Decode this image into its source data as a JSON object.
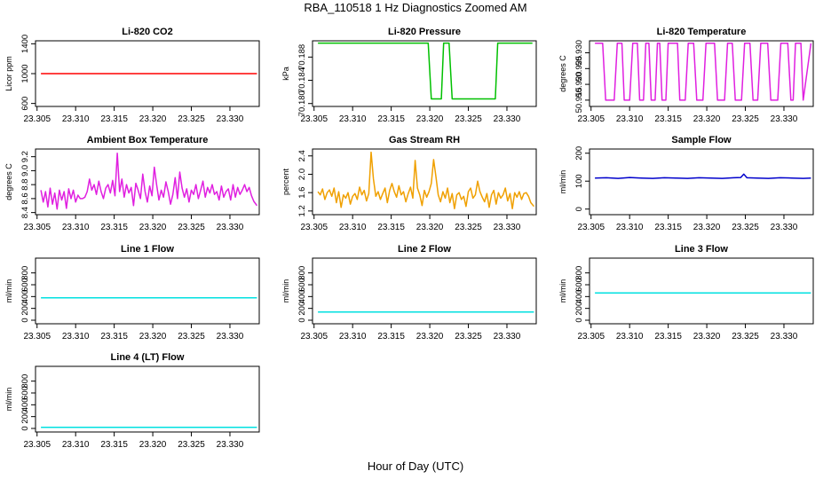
{
  "figure": {
    "title": "RBA_110518  1 Hz Diagnostics Zoomed AM",
    "xlabel": "Hour of Day (UTC)"
  },
  "chart_data": [
    {
      "type": "line",
      "title": "Li-820 CO2",
      "ylabel": "Licor ppm",
      "color": "#ff0000",
      "x_ticks": [
        "23.305",
        "23.310",
        "23.315",
        "23.320",
        "23.325",
        "23.330"
      ],
      "y_ticks": [
        600,
        1000,
        1400
      ],
      "ylim": [
        560,
        1440
      ],
      "xlim": [
        23.3048,
        23.3338
      ],
      "series": [
        {
          "name": "CO2",
          "x": [
            23.3055,
            23.3335
          ],
          "values": [
            1000,
            1000
          ]
        }
      ]
    },
    {
      "type": "line",
      "title": "Li-820 Pressure",
      "ylabel": "kPa",
      "color": "#00c000",
      "x_ticks": [
        "23.305",
        "23.310",
        "23.315",
        "23.320",
        "23.325",
        "23.330"
      ],
      "y_ticks": [
        70.18,
        70.184,
        70.188
      ],
      "y_tick_labels": [
        "70.180",
        "70.184",
        "70.188"
      ],
      "ylim": [
        70.1795,
        70.1908
      ],
      "xlim": [
        23.3048,
        23.3338
      ],
      "series": [
        {
          "name": "Pressure",
          "x": [
            23.3055,
            23.3198,
            23.3202,
            23.3215,
            23.3218,
            23.3225,
            23.3229,
            23.3285,
            23.3288,
            23.3333
          ],
          "values": [
            70.1904,
            70.1904,
            70.1808,
            70.1808,
            70.1904,
            70.1904,
            70.1808,
            70.1808,
            70.1904,
            70.1904
          ]
        }
      ]
    },
    {
      "type": "line",
      "title": "Li-820 Temperature",
      "ylabel": "degrees C",
      "color": "#e020e0",
      "x_ticks": [
        "23.305",
        "23.310",
        "23.315",
        "23.320",
        "23.325",
        "23.330"
      ],
      "y_ticks": [
        50.915,
        50.92,
        50.925,
        50.93
      ],
      "y_tick_labels": [
        "50.915",
        "50.920",
        "50.925",
        "50.930"
      ],
      "ylim": [
        50.913,
        50.9338
      ],
      "xlim": [
        23.3048,
        23.3338
      ],
      "series": [
        {
          "name": "Temperature",
          "x": [
            23.3055,
            23.3065,
            23.3069,
            23.308,
            23.3084,
            23.309,
            23.3093,
            23.31,
            23.3104,
            23.311,
            23.3113,
            23.3118,
            23.3121,
            23.3125,
            23.3128,
            23.3133,
            23.3136,
            23.3139,
            23.3142,
            23.3147,
            23.315,
            23.3162,
            23.3165,
            23.3172,
            23.3176,
            23.3183,
            23.3187,
            23.3195,
            23.3199,
            23.321,
            23.3214,
            23.3223,
            23.3227,
            23.3233,
            23.3237,
            23.3245,
            23.3249,
            23.3256,
            23.326,
            23.3266,
            23.327,
            23.3279,
            23.3283,
            23.3292,
            23.3296,
            23.3305,
            23.3309,
            23.3312,
            23.3315,
            23.3322,
            23.3325,
            23.3335
          ],
          "values": [
            50.933,
            50.933,
            50.915,
            50.915,
            50.933,
            50.933,
            50.915,
            50.915,
            50.933,
            50.933,
            50.915,
            50.915,
            50.933,
            50.933,
            50.915,
            50.915,
            50.933,
            50.933,
            50.915,
            50.915,
            50.933,
            50.933,
            50.915,
            50.915,
            50.933,
            50.933,
            50.915,
            50.915,
            50.933,
            50.933,
            50.915,
            50.915,
            50.933,
            50.933,
            50.915,
            50.915,
            50.933,
            50.933,
            50.915,
            50.915,
            50.933,
            50.933,
            50.915,
            50.915,
            50.933,
            50.933,
            50.915,
            50.915,
            50.933,
            50.933,
            50.915,
            50.933
          ]
        }
      ]
    },
    {
      "type": "line",
      "title": "Ambient Box Temperature",
      "ylabel": "degrees C",
      "color": "#e020e0",
      "x_ticks": [
        "23.305",
        "23.310",
        "23.315",
        "23.320",
        "23.325",
        "23.330"
      ],
      "y_ticks": [
        8.4,
        8.6,
        8.8,
        9.0,
        9.2
      ],
      "y_tick_labels": [
        "8.4",
        "8.6",
        "8.8",
        "9.0",
        "9.2"
      ],
      "ylim": [
        8.37,
        9.31
      ],
      "xlim": [
        23.3048,
        23.3338
      ],
      "series": [
        {
          "name": "Box Temp",
          "x": [
            23.3055,
            23.3058,
            23.3061,
            23.3064,
            23.3067,
            23.307,
            23.3073,
            23.3076,
            23.3079,
            23.3082,
            23.3085,
            23.3088,
            23.3091,
            23.3094,
            23.3097,
            23.31,
            23.3103,
            23.3106,
            23.3109,
            23.3112,
            23.3115,
            23.3118,
            23.3121,
            23.3124,
            23.3127,
            23.313,
            23.3133,
            23.3136,
            23.3139,
            23.3142,
            23.3145,
            23.3148,
            23.3151,
            23.3154,
            23.3157,
            23.316,
            23.3163,
            23.3166,
            23.3169,
            23.3172,
            23.3175,
            23.3178,
            23.3181,
            23.3184,
            23.3187,
            23.319,
            23.3193,
            23.3196,
            23.3199,
            23.3202,
            23.3205,
            23.3208,
            23.3211,
            23.3214,
            23.3217,
            23.322,
            23.3223,
            23.3226,
            23.3229,
            23.3232,
            23.3235,
            23.3238,
            23.3241,
            23.3244,
            23.3247,
            23.325,
            23.3253,
            23.3256,
            23.3259,
            23.3262,
            23.3265,
            23.3268,
            23.3271,
            23.3274,
            23.3277,
            23.328,
            23.3283,
            23.3286,
            23.3289,
            23.3292,
            23.3295,
            23.3298,
            23.3301,
            23.3304,
            23.3307,
            23.331,
            23.3313,
            23.3316,
            23.3319,
            23.3322,
            23.3325,
            23.3328,
            23.3331,
            23.3335
          ],
          "values": [
            8.72,
            8.55,
            8.7,
            8.48,
            8.75,
            8.52,
            8.68,
            8.45,
            8.72,
            8.58,
            8.7,
            8.46,
            8.74,
            8.6,
            8.72,
            8.55,
            8.65,
            8.6,
            8.6,
            8.62,
            8.7,
            8.88,
            8.72,
            8.8,
            8.66,
            8.85,
            8.7,
            8.6,
            8.75,
            8.8,
            8.68,
            8.86,
            8.64,
            9.25,
            8.7,
            8.88,
            8.62,
            8.8,
            8.68,
            8.76,
            8.5,
            8.82,
            8.72,
            8.6,
            8.95,
            8.7,
            8.55,
            8.78,
            8.64,
            9.05,
            8.8,
            8.58,
            8.72,
            8.62,
            8.84,
            8.7,
            8.52,
            8.66,
            8.9,
            8.6,
            8.98,
            8.75,
            8.62,
            8.74,
            8.55,
            8.72,
            8.66,
            8.8,
            8.6,
            8.72,
            8.85,
            8.62,
            8.76,
            8.68,
            8.8,
            8.66,
            8.7,
            8.58,
            8.78,
            8.62,
            8.7,
            8.74,
            8.58,
            8.8,
            8.62,
            8.76,
            8.66,
            8.72,
            8.8,
            8.7,
            8.76,
            8.64,
            8.56,
            8.5
          ]
        }
      ]
    },
    {
      "type": "line",
      "title": "Gas Stream RH",
      "ylabel": "percent",
      "color": "#f0a000",
      "x_ticks": [
        "23.305",
        "23.310",
        "23.315",
        "23.320",
        "23.325",
        "23.330"
      ],
      "y_ticks": [
        1.2,
        1.6,
        2.0,
        2.4
      ],
      "y_tick_labels": [
        "1.2",
        "1.6",
        "2.0",
        "2.4"
      ],
      "ylim": [
        1.12,
        2.55
      ],
      "xlim": [
        23.3048,
        23.3338
      ],
      "series": [
        {
          "name": "RH",
          "x": [
            23.3055,
            23.3058,
            23.3061,
            23.3064,
            23.3067,
            23.307,
            23.3073,
            23.3076,
            23.3079,
            23.3082,
            23.3085,
            23.3088,
            23.3091,
            23.3094,
            23.3097,
            23.31,
            23.3103,
            23.3106,
            23.3109,
            23.3112,
            23.3115,
            23.3118,
            23.3121,
            23.3124,
            23.3127,
            23.313,
            23.3133,
            23.3136,
            23.3139,
            23.3142,
            23.3145,
            23.3148,
            23.3151,
            23.3154,
            23.3157,
            23.316,
            23.3163,
            23.3166,
            23.3169,
            23.3172,
            23.3175,
            23.3178,
            23.3181,
            23.3184,
            23.3187,
            23.319,
            23.3193,
            23.3196,
            23.3199,
            23.3202,
            23.3205,
            23.3208,
            23.3211,
            23.3214,
            23.3217,
            23.322,
            23.3223,
            23.3226,
            23.3229,
            23.3232,
            23.3235,
            23.3238,
            23.3241,
            23.3244,
            23.3247,
            23.325,
            23.3253,
            23.3256,
            23.3259,
            23.3262,
            23.3265,
            23.3268,
            23.3271,
            23.3274,
            23.3277,
            23.328,
            23.3283,
            23.3286,
            23.3289,
            23.3292,
            23.3295,
            23.3298,
            23.3301,
            23.3304,
            23.3307,
            23.331,
            23.3313,
            23.3316,
            23.3319,
            23.3322,
            23.3325,
            23.3328,
            23.3331,
            23.3335
          ],
          "values": [
            1.62,
            1.55,
            1.68,
            1.45,
            1.6,
            1.66,
            1.52,
            1.7,
            1.38,
            1.62,
            1.28,
            1.55,
            1.48,
            1.6,
            1.35,
            1.52,
            1.58,
            1.45,
            1.72,
            1.55,
            1.65,
            1.42,
            1.58,
            2.48,
            1.9,
            1.52,
            1.62,
            1.45,
            1.58,
            1.7,
            1.38,
            1.65,
            1.8,
            1.62,
            1.5,
            1.75,
            1.55,
            1.62,
            1.4,
            1.58,
            1.72,
            1.48,
            2.3,
            1.7,
            1.55,
            1.32,
            1.65,
            1.5,
            1.62,
            1.8,
            2.32,
            1.95,
            1.55,
            1.4,
            1.62,
            1.48,
            1.7,
            1.38,
            1.58,
            1.25,
            1.55,
            1.6,
            1.45,
            1.52,
            1.3,
            1.62,
            1.7,
            1.48,
            1.55,
            1.85,
            1.62,
            1.5,
            1.4,
            1.58,
            1.28,
            1.55,
            1.65,
            1.35,
            1.6,
            1.48,
            1.55,
            1.7,
            1.42,
            1.58,
            1.25,
            1.6,
            1.5,
            1.62,
            1.45,
            1.58,
            1.6,
            1.52,
            1.38,
            1.3
          ]
        }
      ]
    },
    {
      "type": "line",
      "title": "Sample Flow",
      "ylabel": "ml/min",
      "color": "#0000cc",
      "x_ticks": [
        "23.305",
        "23.310",
        "23.315",
        "23.320",
        "23.325",
        "23.330"
      ],
      "y_ticks": [
        0,
        100,
        200
      ],
      "ylim": [
        -20,
        215
      ],
      "xlim": [
        23.3048,
        23.3338
      ],
      "series": [
        {
          "name": "Sample Flow",
          "x": [
            23.3055,
            23.307,
            23.3085,
            23.31,
            23.3115,
            23.313,
            23.3145,
            23.316,
            23.3175,
            23.319,
            23.3205,
            23.322,
            23.3235,
            23.3244,
            23.3248,
            23.3252,
            23.3265,
            23.328,
            23.3295,
            23.331,
            23.3325,
            23.3335
          ],
          "values": [
            111,
            112,
            110,
            113,
            111,
            110,
            112,
            111,
            110,
            112,
            111,
            110,
            112,
            113,
            125,
            112,
            111,
            110,
            112,
            111,
            110,
            111
          ]
        }
      ]
    },
    {
      "type": "line",
      "title": "Line 1 Flow",
      "ylabel": "ml/min",
      "color": "#00e0e0",
      "x_ticks": [
        "23.305",
        "23.310",
        "23.315",
        "23.320",
        "23.325",
        "23.330"
      ],
      "y_ticks": [
        0,
        200,
        400,
        600,
        800
      ],
      "ylim": [
        -60,
        1050
      ],
      "xlim": [
        23.3048,
        23.3338
      ],
      "series": [
        {
          "name": "Line 1",
          "x": [
            23.3055,
            23.3335
          ],
          "values": [
            380,
            380
          ]
        }
      ]
    },
    {
      "type": "line",
      "title": "Line 2 Flow",
      "ylabel": "ml/min",
      "color": "#00e0e0",
      "x_ticks": [
        "23.305",
        "23.310",
        "23.315",
        "23.320",
        "23.325",
        "23.330"
      ],
      "y_ticks": [
        0,
        200,
        400,
        600,
        800
      ],
      "ylim": [
        -60,
        1050
      ],
      "xlim": [
        23.3048,
        23.3338
      ],
      "series": [
        {
          "name": "Line 2",
          "x": [
            23.3055,
            23.3335
          ],
          "values": [
            140,
            140
          ]
        }
      ]
    },
    {
      "type": "line",
      "title": "Line 3 Flow",
      "ylabel": "ml/min",
      "color": "#00e0e0",
      "x_ticks": [
        "23.305",
        "23.310",
        "23.315",
        "23.320",
        "23.325",
        "23.330"
      ],
      "y_ticks": [
        0,
        200,
        400,
        600,
        800
      ],
      "ylim": [
        -60,
        1050
      ],
      "xlim": [
        23.3048,
        23.3338
      ],
      "series": [
        {
          "name": "Line 3",
          "x": [
            23.3055,
            23.3335
          ],
          "values": [
            460,
            460
          ]
        }
      ]
    },
    {
      "type": "line",
      "title": "Line 4 (LT) Flow",
      "ylabel": "ml/min",
      "color": "#00e0e0",
      "x_ticks": [
        "23.305",
        "23.310",
        "23.315",
        "23.320",
        "23.325",
        "23.330"
      ],
      "y_ticks": [
        0,
        200,
        400,
        600,
        800
      ],
      "ylim": [
        -60,
        1050
      ],
      "xlim": [
        23.3048,
        23.3338
      ],
      "series": [
        {
          "name": "Line 4",
          "x": [
            23.3055,
            23.3335
          ],
          "values": [
            20,
            20
          ]
        }
      ]
    }
  ]
}
